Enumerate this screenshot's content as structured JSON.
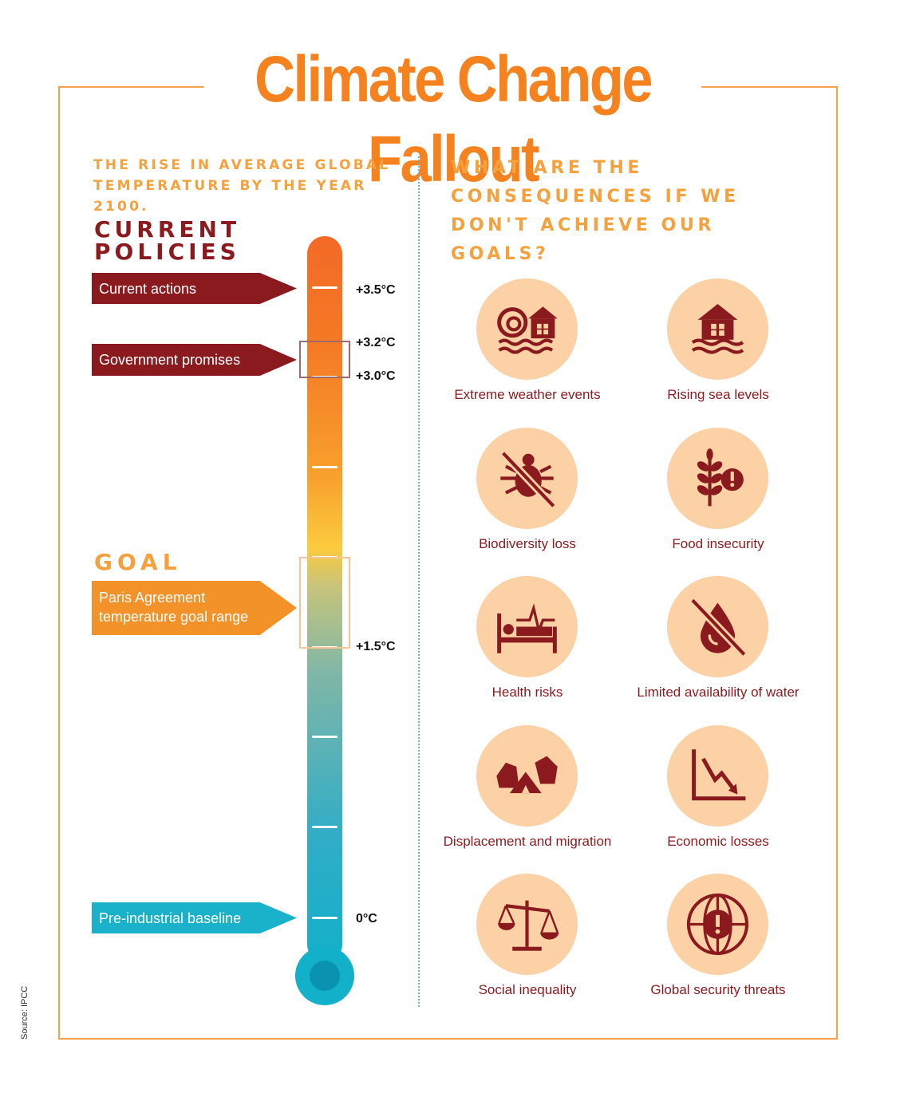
{
  "title": "Climate Change Fallout",
  "left_heading": "THE RISE IN AVERAGE GLOBAL TEMPERATURE BY THE YEAR 2100.",
  "right_heading": "WHAT ARE THE CONSEQUENCES IF  WE DON'T ACHIEVE OUR GOALS?",
  "sections": {
    "current_policies": "CURRENT POLICIES",
    "goal": "GOAL"
  },
  "arrows": {
    "current_actions": "Current actions",
    "government_promises": "Government promises",
    "paris": "Paris Agreement\ntemperature goal range",
    "baseline": "Pre-industrial baseline"
  },
  "temperatures": {
    "t35": "+3.5°C",
    "t32": "+3.2°C",
    "t30": "+3.0°C",
    "t15": "+1.5°C",
    "t0": "0°C"
  },
  "consequences": [
    {
      "label": "Extreme weather events",
      "icon": "storm-house-icon"
    },
    {
      "label": "Rising sea levels",
      "icon": "flooded-house-icon"
    },
    {
      "label": "Biodiversity loss",
      "icon": "crossed-bug-icon"
    },
    {
      "label": "Food insecurity",
      "icon": "wheat-alert-icon"
    },
    {
      "label": "Health risks",
      "icon": "hospital-bed-icon"
    },
    {
      "label": "Limited availability of water",
      "icon": "crossed-drop-icon"
    },
    {
      "label": "Displacement and migration",
      "icon": "tents-icon"
    },
    {
      "label": "Economic losses",
      "icon": "declining-chart-icon"
    },
    {
      "label": "Social inequality",
      "icon": "scales-icon"
    },
    {
      "label": "Global security threats",
      "icon": "globe-alert-icon"
    }
  ],
  "source": "Source: IPCC",
  "colors": {
    "orange": "#f5821f",
    "dark_red": "#8b1a1f",
    "peach": "#fcd1a5",
    "cyan": "#12b0c9"
  }
}
